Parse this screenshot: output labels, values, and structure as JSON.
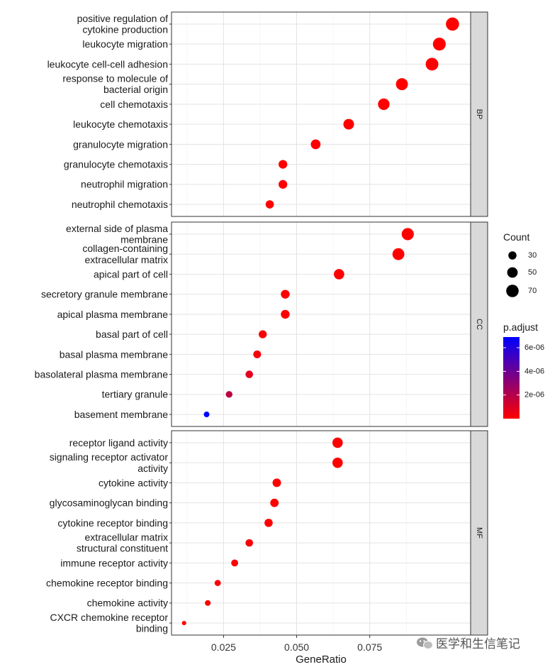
{
  "chart_data": {
    "type": "scatter",
    "xlabel": "GeneRatio",
    "xlim": [
      0.0072,
      0.1095
    ],
    "xticks": [
      {
        "value": 0.025,
        "label": "0.025"
      },
      {
        "value": 0.05,
        "label": "0.050"
      },
      {
        "value": 0.075,
        "label": "0.075"
      }
    ],
    "grid": true,
    "legend": {
      "size_title": "Count",
      "size_entries": [
        {
          "value": 30,
          "label": "30"
        },
        {
          "value": 50,
          "label": "50"
        },
        {
          "value": 70,
          "label": "70"
        }
      ],
      "color_title": "p.adjust",
      "color_ticks": [
        {
          "value": 2e-06,
          "label": "2e-06"
        },
        {
          "value": 4e-06,
          "label": "4e-06"
        },
        {
          "value": 6e-06,
          "label": "6e-06"
        }
      ],
      "color_range": [
        0,
        6.9e-06
      ],
      "color_low": "#ff0000",
      "color_high": "#0000ff",
      "placement": "right"
    },
    "facets": [
      {
        "name": "BP",
        "terms": [
          {
            "label": [
              "positive regulation of",
              "cytokine production"
            ],
            "x": 0.1033,
            "p": 0
          },
          {
            "label": [
              "leukocyte migration"
            ],
            "x": 0.0988,
            "p": 0
          },
          {
            "label": [
              "leukocyte cell-cell adhesion"
            ],
            "x": 0.0963,
            "p": 0
          },
          {
            "label": [
              "response to molecule of",
              "bacterial origin"
            ],
            "x": 0.086,
            "p": 0
          },
          {
            "label": [
              "cell chemotaxis"
            ],
            "x": 0.0798,
            "p": 0
          },
          {
            "label": [
              "leukocyte chemotaxis"
            ],
            "x": 0.0678,
            "p": 0
          },
          {
            "label": [
              "granulocyte migration"
            ],
            "x": 0.0565,
            "p": 0
          },
          {
            "label": [
              "granulocyte chemotaxis"
            ],
            "x": 0.0453,
            "p": 0
          },
          {
            "label": [
              "neutrophil migration"
            ],
            "x": 0.0453,
            "p": 0
          },
          {
            "label": [
              "neutrophil chemotaxis"
            ],
            "x": 0.0408,
            "p": 0
          }
        ]
      },
      {
        "name": "CC",
        "terms": [
          {
            "label": [
              "external side of plasma",
              "membrane"
            ],
            "x": 0.088,
            "p": 0
          },
          {
            "label": [
              "collagen-containing",
              "extracellular matrix"
            ],
            "x": 0.0848,
            "p": 0
          },
          {
            "label": [
              "apical part of cell"
            ],
            "x": 0.0645,
            "p": 0
          },
          {
            "label": [
              "secretory granule membrane"
            ],
            "x": 0.0461,
            "p": 0
          },
          {
            "label": [
              "apical plasma membrane"
            ],
            "x": 0.0461,
            "p": 0
          },
          {
            "label": [
              "basal part of cell"
            ],
            "x": 0.0384,
            "p": 2e-07
          },
          {
            "label": [
              "basal plasma membrane"
            ],
            "x": 0.0365,
            "p": 3e-07
          },
          {
            "label": [
              "basolateral plasma membrane"
            ],
            "x": 0.0338,
            "p": 8e-07
          },
          {
            "label": [
              "tertiary granule"
            ],
            "x": 0.0269,
            "p": 1.8e-06
          },
          {
            "label": [
              "basement membrane"
            ],
            "x": 0.0192,
            "p": 6.9e-06
          }
        ]
      },
      {
        "name": "MF",
        "terms": [
          {
            "label": [
              "receptor ligand activity"
            ],
            "x": 0.064,
            "p": 0
          },
          {
            "label": [
              "signaling receptor activator",
              "activity"
            ],
            "x": 0.064,
            "p": 0
          },
          {
            "label": [
              "cytokine activity"
            ],
            "x": 0.0432,
            "p": 0
          },
          {
            "label": [
              "glycosaminoglycan binding"
            ],
            "x": 0.0424,
            "p": 0
          },
          {
            "label": [
              "cytokine receptor binding"
            ],
            "x": 0.0404,
            "p": 0
          },
          {
            "label": [
              "extracellular matrix",
              "structural constituent"
            ],
            "x": 0.0338,
            "p": 2e-07
          },
          {
            "label": [
              "immune receptor activity"
            ],
            "x": 0.0288,
            "p": 1e-07
          },
          {
            "label": [
              "chemokine receptor binding"
            ],
            "x": 0.023,
            "p": 1e-07
          },
          {
            "label": [
              "chemokine activity"
            ],
            "x": 0.0196,
            "p": 0
          },
          {
            "label": [
              "CXCR chemokine receptor",
              "binding"
            ],
            "x": 0.0115,
            "p": 0
          }
        ]
      }
    ]
  },
  "watermark": {
    "icon": "wechat-icon",
    "text": "医学和生信笔记"
  }
}
